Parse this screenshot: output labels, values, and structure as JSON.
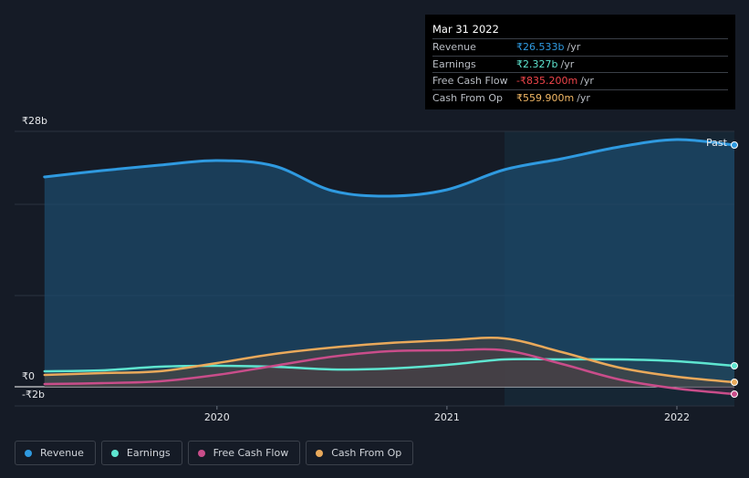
{
  "tooltip": {
    "date": "Mar 31 2022",
    "rows": [
      {
        "label": "Revenue",
        "value": "₹26.533b",
        "unit": "/yr",
        "color": "#2f9ae0"
      },
      {
        "label": "Earnings",
        "value": "₹2.327b",
        "unit": "/yr",
        "color": "#5ee5d0"
      },
      {
        "label": "Free Cash Flow",
        "value": "-₹835.200m",
        "unit": "/yr",
        "color": "#f0454a"
      },
      {
        "label": "Cash From Op",
        "value": "₹559.900m",
        "unit": "/yr",
        "color": "#f2b866"
      }
    ]
  },
  "legend": [
    {
      "label": "Revenue",
      "color": "#2f9ae0"
    },
    {
      "label": "Earnings",
      "color": "#5ee5d0"
    },
    {
      "label": "Free Cash Flow",
      "color": "#c94d8a"
    },
    {
      "label": "Cash From Op",
      "color": "#e9a95b"
    }
  ],
  "chart_data": {
    "type": "area",
    "y_tick_labels": [
      "₹28b",
      "₹0",
      "-₹2b"
    ],
    "x_tick_labels": [
      "2020",
      "2021",
      "2022"
    ],
    "x_ticks": [
      2020.0,
      2021.0,
      2022.0
    ],
    "ylim": [
      -2,
      28
    ],
    "xlim": [
      2019.12,
      2022.25
    ],
    "past_label": "Past",
    "grid": true,
    "series": [
      {
        "name": "Revenue",
        "color": "#2f9ae0",
        "x": [
          2019.25,
          2019.5,
          2019.75,
          2020.0,
          2020.25,
          2020.5,
          2020.75,
          2021.0,
          2021.25,
          2021.5,
          2021.75,
          2022.0,
          2022.25
        ],
        "values": [
          23.0,
          23.7,
          24.3,
          24.8,
          24.2,
          21.5,
          20.9,
          21.6,
          23.8,
          25.0,
          26.3,
          27.1,
          26.5
        ]
      },
      {
        "name": "Earnings",
        "color": "#5ee5d0",
        "x": [
          2019.25,
          2019.5,
          2019.75,
          2020.0,
          2020.25,
          2020.5,
          2020.75,
          2021.0,
          2021.25,
          2021.5,
          2021.75,
          2022.0,
          2022.25
        ],
        "values": [
          1.7,
          1.8,
          2.2,
          2.3,
          2.2,
          1.9,
          2.0,
          2.4,
          3.0,
          3.0,
          3.0,
          2.8,
          2.3
        ]
      },
      {
        "name": "Free Cash Flow",
        "color": "#c94d8a",
        "x": [
          2019.25,
          2019.5,
          2019.75,
          2020.0,
          2020.25,
          2020.5,
          2020.75,
          2021.0,
          2021.25,
          2021.5,
          2021.75,
          2022.0,
          2022.25
        ],
        "values": [
          0.3,
          0.4,
          0.6,
          1.3,
          2.3,
          3.3,
          3.9,
          4.0,
          4.0,
          2.5,
          0.8,
          -0.2,
          -0.8
        ]
      },
      {
        "name": "Cash From Op",
        "color": "#e9a95b",
        "x": [
          2019.25,
          2019.5,
          2019.75,
          2020.0,
          2020.25,
          2020.5,
          2020.75,
          2021.0,
          2021.25,
          2021.5,
          2021.75,
          2022.0,
          2022.25
        ],
        "values": [
          1.3,
          1.5,
          1.7,
          2.6,
          3.6,
          4.3,
          4.8,
          5.1,
          5.3,
          3.8,
          2.1,
          1.1,
          0.5
        ]
      }
    ]
  }
}
